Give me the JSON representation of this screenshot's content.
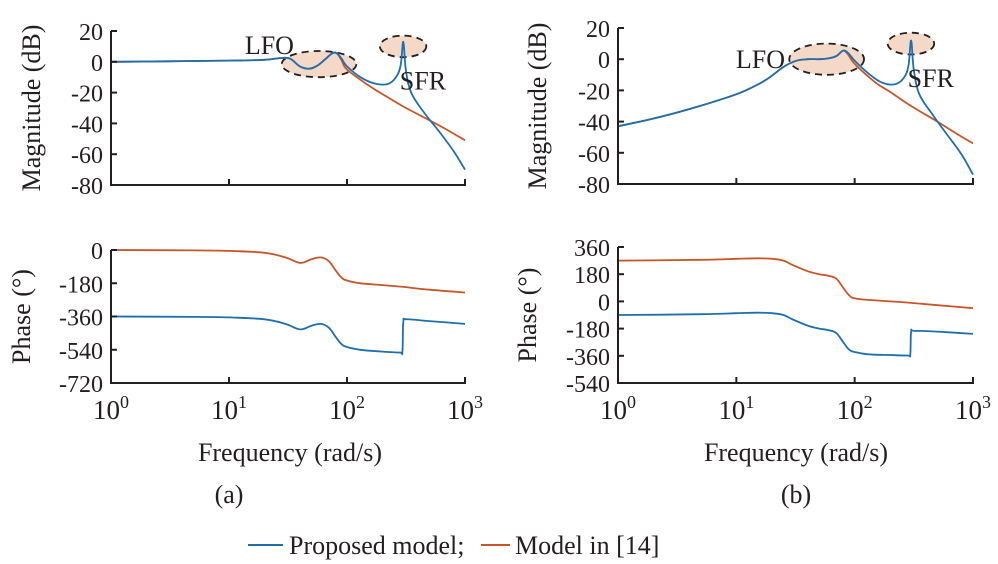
{
  "colors": {
    "proposed": "#1f6fae",
    "model14": "#c8562a",
    "highlight": "#f5d9c8"
  },
  "legend": {
    "proposed_label": "Proposed model;",
    "model14_label": "Model in [14]"
  },
  "chart_data": [
    {
      "id": "a",
      "type": "line",
      "caption": "(a)",
      "xlabel": "Frequency (rad/s)",
      "xscale": "log",
      "xlim": [
        1,
        1000
      ],
      "x_ticks": [
        1,
        10,
        100,
        1000
      ],
      "x_tick_labels": [
        {
          "base": "10",
          "exp": "0"
        },
        {
          "base": "10",
          "exp": "1"
        },
        {
          "base": "10",
          "exp": "2"
        },
        {
          "base": "10",
          "exp": "3"
        }
      ],
      "magnitude": {
        "ylabel": "Magnitude (dB)",
        "ylim": [
          -80,
          20
        ],
        "y_ticks": [
          20,
          0,
          -20,
          -40,
          -60,
          -80
        ],
        "y_tick_labels": [
          "20",
          "0",
          "-20",
          "-40",
          "-60",
          "-80"
        ],
        "series": [
          {
            "name": "Proposed model",
            "color_key": "proposed",
            "x": [
              1,
              3,
              10,
              20,
              28,
              33,
              40,
              48,
              56,
              65,
              75,
              82,
              90,
              100,
              130,
              170,
              220,
              260,
              285,
              300,
              315,
              350,
              450,
              600,
              800,
              1000
            ],
            "y": [
              0,
              0.3,
              0.8,
              1.3,
              2.5,
              2,
              -3,
              -4.5,
              -2.5,
              1.5,
              5.5,
              5.5,
              2,
              -3,
              -10,
              -14,
              -14.5,
              -10,
              -2,
              13,
              -5,
              -20,
              -33,
              -45,
              -58,
              -70
            ]
          },
          {
            "name": "Model in [14]",
            "color_key": "model14",
            "x": [
              1,
              3,
              10,
              20,
              28,
              33,
              40,
              48,
              56,
              65,
              75,
              82,
              90,
              100,
              150,
              200,
              300,
              500,
              700,
              1000
            ],
            "y": [
              0,
              0.3,
              0.8,
              1.3,
              2.5,
              2,
              -3,
              -4.5,
              -2.5,
              1.5,
              5.5,
              5.5,
              1,
              -5,
              -15,
              -21,
              -29,
              -38,
              -44,
              -51
            ]
          }
        ],
        "annotations": [
          {
            "text": "LFO",
            "x": 22,
            "y": 11
          },
          {
            "text": "SFR",
            "x": 440,
            "y": -12
          }
        ],
        "highlight_regions": [
          {
            "label": "LFO",
            "x_range": [
              28,
              120
            ],
            "y_range": [
              -10,
              7
            ]
          },
          {
            "label": "SFR",
            "x_range": [
              190,
              470
            ],
            "y_range": [
              3,
              17
            ]
          }
        ]
      },
      "phase": {
        "ylabel": "Phase (°)",
        "ylim": [
          -720,
          0
        ],
        "y_ticks": [
          0,
          -180,
          -360,
          -540,
          -720
        ],
        "y_tick_labels": [
          "0",
          "-180",
          "-360",
          "-540",
          "-720"
        ],
        "series": [
          {
            "name": "Proposed model",
            "color_key": "proposed",
            "x": [
              1,
              5,
              10,
              20,
              30,
              40,
              50,
              60,
              70,
              80,
              90,
              100,
              130,
              200,
              280,
              295,
              300,
              320,
              500,
              1000
            ],
            "y": [
              -360,
              -362,
              -365,
              -375,
              -400,
              -430,
              -410,
              -400,
              -420,
              -470,
              -510,
              -525,
              -540,
              -550,
              -555,
              -550,
              -390,
              -375,
              -385,
              -400
            ]
          },
          {
            "name": "Model in [14]",
            "color_key": "model14",
            "x": [
              1,
              5,
              10,
              20,
              30,
              40,
              50,
              60,
              70,
              80,
              90,
              100,
              130,
              200,
              300,
              500,
              1000
            ],
            "y": [
              0,
              -2,
              -5,
              -15,
              -40,
              -70,
              -50,
              -40,
              -60,
              -110,
              -150,
              -165,
              -180,
              -190,
              -200,
              -215,
              -230
            ]
          }
        ]
      }
    },
    {
      "id": "b",
      "type": "line",
      "caption": "(b)",
      "xlabel": "Frequency (rad/s)",
      "xscale": "log",
      "xlim": [
        1,
        1000
      ],
      "x_ticks": [
        1,
        10,
        100,
        1000
      ],
      "x_tick_labels": [
        {
          "base": "10",
          "exp": "0"
        },
        {
          "base": "10",
          "exp": "1"
        },
        {
          "base": "10",
          "exp": "2"
        },
        {
          "base": "10",
          "exp": "3"
        }
      ],
      "magnitude": {
        "ylabel": "Magnitude (dB)",
        "ylim": [
          -80,
          20
        ],
        "y_ticks": [
          20,
          0,
          -20,
          -40,
          -60,
          -80
        ],
        "y_tick_labels": [
          "20",
          "0",
          "-20",
          "-40",
          "-60",
          "-80"
        ],
        "series": [
          {
            "name": "Proposed model",
            "color_key": "proposed",
            "x": [
              1,
              2,
              4,
              8,
              12,
              18,
              25,
              32,
              40,
              50,
              60,
              70,
              80,
              88,
              100,
              130,
              170,
              220,
              260,
              285,
              300,
              315,
              350,
              450,
              600,
              800,
              1000
            ],
            "y": [
              -43,
              -38,
              -32,
              -25,
              -20,
              -13,
              -5,
              -1,
              0,
              0,
              0.5,
              2,
              5.5,
              4,
              -1,
              -9,
              -15,
              -16,
              -12,
              -4,
              12,
              -6,
              -22,
              -35,
              -48,
              -61,
              -74
            ]
          },
          {
            "name": "Model in [14]",
            "color_key": "model14",
            "x": [
              1,
              2,
              4,
              8,
              12,
              18,
              25,
              32,
              40,
              50,
              60,
              70,
              80,
              88,
              100,
              150,
              200,
              300,
              500,
              700,
              1000
            ],
            "y": [
              -43,
              -38,
              -32,
              -25,
              -20,
              -13,
              -5,
              -1,
              0,
              0,
              0.5,
              2,
              5.5,
              3,
              -3,
              -15,
              -21,
              -30,
              -40,
              -47,
              -54
            ]
          }
        ],
        "annotations": [
          {
            "text": "LFO",
            "x": 16,
            "y": 0
          },
          {
            "text": "SFR",
            "x": 440,
            "y": -12
          }
        ],
        "highlight_regions": [
          {
            "label": "LFO",
            "x_range": [
              28,
              120
            ],
            "y_range": [
              -10,
              10
            ]
          },
          {
            "label": "SFR",
            "x_range": [
              190,
              470
            ],
            "y_range": [
              3,
              17
            ]
          }
        ]
      },
      "phase": {
        "ylabel": "Phase (°)",
        "ylim": [
          -540,
          360
        ],
        "y_ticks": [
          360,
          180,
          0,
          -180,
          -360,
          -540
        ],
        "y_tick_labels": [
          "360",
          "180",
          "0",
          "-180",
          "-360",
          "-540"
        ],
        "series": [
          {
            "name": "Proposed model",
            "color_key": "proposed",
            "x": [
              1,
              5,
              10,
              15,
              20,
              25,
              30,
              40,
              50,
              60,
              70,
              80,
              90,
              100,
              130,
              200,
              280,
              295,
              300,
              320,
              500,
              1000
            ],
            "y": [
              -90,
              -85,
              -78,
              -75,
              -78,
              -90,
              -120,
              -160,
              -180,
              -190,
              -210,
              -270,
              -320,
              -335,
              -350,
              -355,
              -358,
              -350,
              -200,
              -195,
              -200,
              -215
            ]
          },
          {
            "name": "Model in [14]",
            "color_key": "model14",
            "x": [
              1,
              5,
              10,
              15,
              20,
              25,
              30,
              40,
              50,
              60,
              70,
              80,
              90,
              100,
              130,
              200,
              300,
              500,
              1000
            ],
            "y": [
              270,
              275,
              282,
              285,
              282,
              270,
              240,
              200,
              180,
              170,
              150,
              90,
              40,
              20,
              10,
              0,
              -10,
              -25,
              -45
            ]
          }
        ]
      }
    }
  ]
}
